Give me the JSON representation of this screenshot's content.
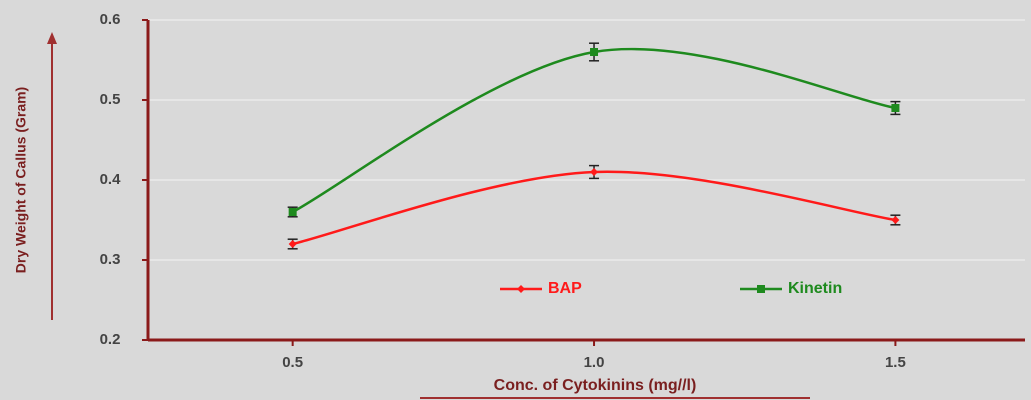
{
  "chart_data": {
    "type": "line",
    "x_label": "Conc. of Cytokinins (mg//l)",
    "y_label": "Dry Weight of Callus (Gram)",
    "x": [
      0.5,
      1.0,
      1.5
    ],
    "series": [
      {
        "name": "BAP",
        "color": "#ff1a1a",
        "marker": "diamond",
        "values": [
          0.32,
          0.41,
          0.35
        ],
        "errors": [
          0.006,
          0.008,
          0.006
        ]
      },
      {
        "name": "Kinetin",
        "color": "#1e8a1e",
        "marker": "square",
        "values": [
          0.36,
          0.56,
          0.49
        ],
        "errors": [
          0.006,
          0.011,
          0.008
        ]
      }
    ],
    "xlim": [
      0.26,
      1.715
    ],
    "xticks": [
      0.5,
      {
        "value": 1.0,
        "label": "1.0"
      },
      1.5
    ],
    "ylim": [
      0.2,
      0.6
    ],
    "yticks": [
      0.2,
      0.3,
      0.4,
      0.5,
      0.6
    ],
    "grid": true,
    "legend": "lower center",
    "smooth": true,
    "error_bars": true
  }
}
